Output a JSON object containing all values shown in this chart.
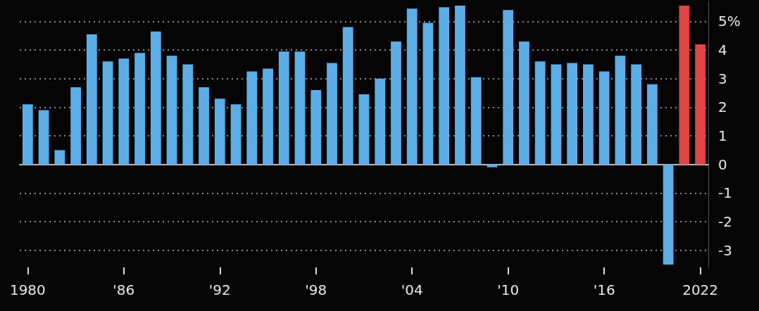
{
  "chart_data": {
    "type": "bar",
    "categories": [
      "1980",
      null,
      null,
      null,
      null,
      null,
      "'86",
      null,
      null,
      null,
      null,
      null,
      "'92",
      null,
      null,
      null,
      null,
      null,
      "'98",
      null,
      null,
      null,
      null,
      null,
      "'04",
      null,
      null,
      null,
      null,
      null,
      "'10",
      null,
      null,
      null,
      null,
      null,
      "'16",
      null,
      null,
      null,
      null,
      null,
      "2022"
    ],
    "values": [
      2.1,
      1.9,
      0.5,
      2.7,
      4.55,
      3.6,
      3.7,
      3.9,
      4.65,
      3.8,
      3.5,
      2.7,
      2.3,
      2.1,
      3.25,
      3.35,
      3.95,
      3.95,
      2.6,
      3.55,
      4.8,
      2.45,
      3.0,
      4.3,
      5.45,
      4.95,
      5.5,
      5.55,
      3.05,
      -0.1,
      5.4,
      4.3,
      3.6,
      3.5,
      3.55,
      3.5,
      3.25,
      3.8,
      3.5,
      2.8,
      -3.5,
      5.55,
      4.2
    ],
    "colors": [
      "#5aaee8",
      "#5aaee8",
      "#5aaee8",
      "#5aaee8",
      "#5aaee8",
      "#5aaee8",
      "#5aaee8",
      "#5aaee8",
      "#5aaee8",
      "#5aaee8",
      "#5aaee8",
      "#5aaee8",
      "#5aaee8",
      "#5aaee8",
      "#5aaee8",
      "#5aaee8",
      "#5aaee8",
      "#5aaee8",
      "#5aaee8",
      "#5aaee8",
      "#5aaee8",
      "#5aaee8",
      "#5aaee8",
      "#5aaee8",
      "#5aaee8",
      "#5aaee8",
      "#5aaee8",
      "#5aaee8",
      "#5aaee8",
      "#5aaee8",
      "#5aaee8",
      "#5aaee8",
      "#5aaee8",
      "#5aaee8",
      "#5aaee8",
      "#5aaee8",
      "#5aaee8",
      "#5aaee8",
      "#5aaee8",
      "#5aaee8",
      "#5aaee8",
      "#e04444",
      "#e04444"
    ],
    "ylim": [
      -3.6,
      5.7
    ],
    "yticks": [
      {
        "value": -3,
        "label": "-3"
      },
      {
        "value": -2,
        "label": "-2"
      },
      {
        "value": -1,
        "label": "-1"
      },
      0,
      1,
      2,
      3,
      4,
      {
        "value": 5,
        "label": "5%"
      }
    ],
    "grid": "y"
  }
}
